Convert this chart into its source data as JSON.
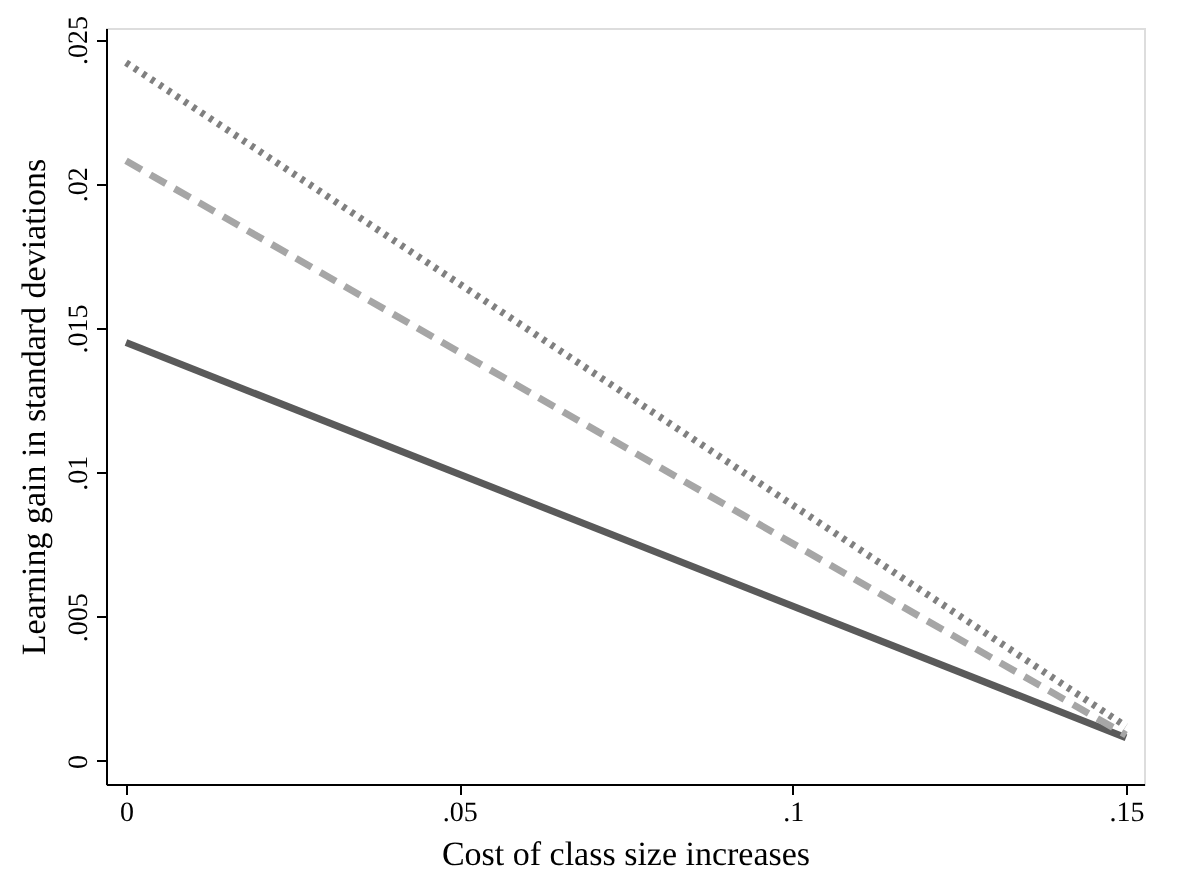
{
  "chart_data": {
    "type": "line",
    "xlabel": "Cost of class size increases",
    "ylabel": "Learning gain in standard deviations",
    "x": [
      0,
      0.15
    ],
    "series": [
      {
        "color": "#5a5a5a",
        "values": [
          0.0145,
          0.0008
        ],
        "line_style": "solid"
      },
      {
        "color": "#a6a6a6",
        "values": [
          0.0208,
          0.0009
        ],
        "line_style": "dashed"
      },
      {
        "color": "#808080",
        "values": [
          0.0242,
          0.0012
        ],
        "line_style": "dotted"
      }
    ],
    "xlim": [
      -0.003,
      0.1527
    ],
    "ylim": [
      -0.0008,
      0.0254
    ],
    "xticks": [
      {
        "value": 0,
        "label": "0"
      },
      {
        "value": 0.05,
        "label": ".05"
      },
      {
        "value": 0.1,
        "label": ".1"
      },
      {
        "value": 0.15,
        "label": ".15"
      }
    ],
    "yticks": [
      {
        "value": 0,
        "label": "0"
      },
      {
        "value": 0.005,
        "label": ".005"
      },
      {
        "value": 0.01,
        "label": ".01"
      },
      {
        "value": 0.015,
        "label": ".015"
      },
      {
        "value": 0.02,
        "label": ".02"
      },
      {
        "value": 0.025,
        "label": ".025"
      }
    ],
    "grid": false
  }
}
